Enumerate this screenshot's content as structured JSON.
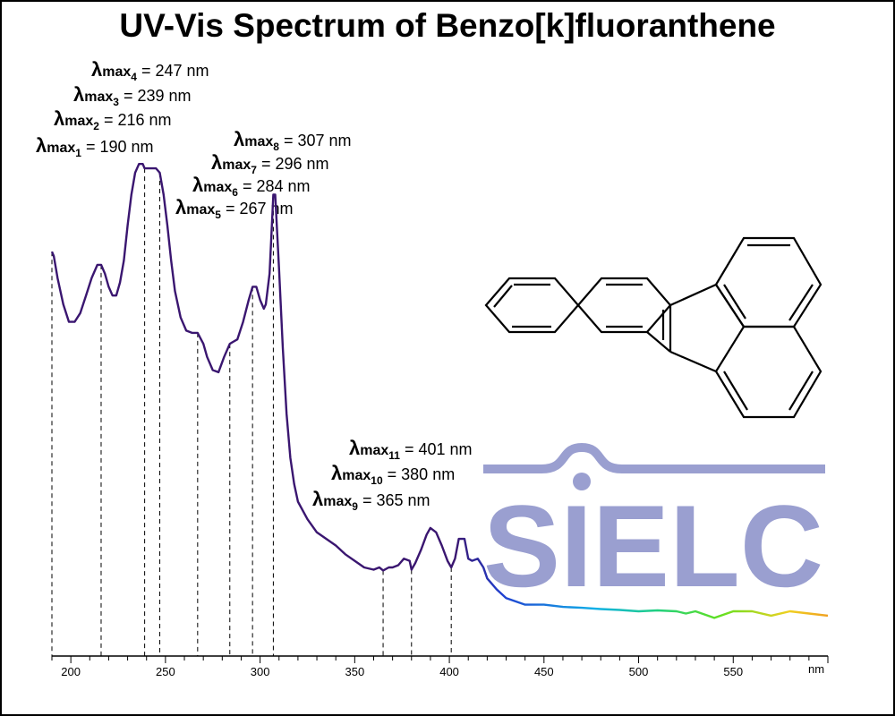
{
  "chart_data": {
    "type": "line",
    "title": "UV-Vis Spectrum of Benzo[k]fluoranthene",
    "x_unit_label": "nm",
    "xlim": [
      190,
      600
    ],
    "x_ticks": [
      200,
      250,
      300,
      350,
      400,
      450,
      500,
      550
    ],
    "grid": false,
    "annotations": [
      {
        "prefix": "λ",
        "sub": "max",
        "index": "1",
        "text": " = 190 nm",
        "x": 190
      },
      {
        "prefix": "λ",
        "sub": "max",
        "index": "2",
        "text": " = 216 nm",
        "x": 216
      },
      {
        "prefix": "λ",
        "sub": "max",
        "index": "3",
        "text": " = 239 nm",
        "x": 239
      },
      {
        "prefix": "λ",
        "sub": "max",
        "index": "4",
        "text": " = 247 nm",
        "x": 247
      },
      {
        "prefix": "λ",
        "sub": "max",
        "index": "5",
        "text": " = 267 nm",
        "x": 267
      },
      {
        "prefix": "λ",
        "sub": "max",
        "index": "6",
        "text": " = 284 nm",
        "x": 284
      },
      {
        "prefix": "λ",
        "sub": "max",
        "index": "7",
        "text": " = 296 nm",
        "x": 296
      },
      {
        "prefix": "λ",
        "sub": "max",
        "index": "8",
        "text": " = 307 nm",
        "x": 307
      },
      {
        "prefix": "λ",
        "sub": "max",
        "index": "9",
        "text": " = 365 nm",
        "x": 365
      },
      {
        "prefix": "λ",
        "sub": "max",
        "index": "10",
        "text": " = 380 nm",
        "x": 380
      },
      {
        "prefix": "λ",
        "sub": "max",
        "index": "11",
        "text": " = 401 nm",
        "x": 401
      }
    ],
    "series": [
      {
        "x": [
          190,
          191,
          193,
          196,
          199,
          202,
          205,
          208,
          211,
          214,
          216,
          218,
          220,
          222,
          224,
          226,
          228,
          230,
          232,
          234,
          236,
          238,
          239,
          240,
          242,
          245,
          247,
          249,
          251,
          253,
          255,
          258,
          261,
          264,
          267,
          270,
          272,
          275,
          278,
          281,
          284,
          286,
          288,
          291,
          294,
          296,
          298,
          300,
          302,
          303,
          305,
          307,
          308,
          310,
          312,
          314,
          316,
          318,
          320,
          325,
          330,
          335,
          340,
          345,
          350,
          355,
          360,
          363,
          365,
          368,
          370,
          373,
          376,
          379,
          380,
          382,
          385,
          388,
          390,
          393,
          396,
          399,
          401,
          403,
          405,
          408,
          410,
          412,
          415,
          418,
          420,
          425,
          430,
          440,
          450,
          460,
          470,
          480,
          490,
          500,
          510,
          520,
          525,
          530,
          540,
          550,
          560,
          570,
          580,
          590,
          600
        ],
        "y": [
          0.82,
          0.81,
          0.76,
          0.7,
          0.66,
          0.66,
          0.68,
          0.72,
          0.76,
          0.79,
          0.79,
          0.77,
          0.74,
          0.72,
          0.72,
          0.75,
          0.8,
          0.88,
          0.95,
          1.0,
          1.02,
          1.02,
          1.01,
          1.01,
          1.01,
          1.01,
          1.0,
          0.95,
          0.88,
          0.8,
          0.73,
          0.67,
          0.64,
          0.635,
          0.635,
          0.61,
          0.58,
          0.55,
          0.545,
          0.58,
          0.61,
          0.615,
          0.62,
          0.66,
          0.71,
          0.74,
          0.74,
          0.71,
          0.69,
          0.7,
          0.77,
          0.95,
          0.95,
          0.78,
          0.6,
          0.45,
          0.35,
          0.29,
          0.25,
          0.21,
          0.18,
          0.165,
          0.15,
          0.13,
          0.115,
          0.1,
          0.095,
          0.1,
          0.093,
          0.1,
          0.1,
          0.105,
          0.12,
          0.115,
          0.095,
          0.11,
          0.14,
          0.175,
          0.19,
          0.18,
          0.15,
          0.115,
          0.1,
          0.12,
          0.165,
          0.165,
          0.12,
          0.115,
          0.12,
          0.1,
          0.075,
          0.05,
          0.03,
          0.015,
          0.015,
          0.01,
          0.008,
          0.005,
          0.003,
          0.0,
          0.002,
          0.0,
          -0.005,
          0.0,
          -0.015,
          0.0,
          0.0,
          -0.01,
          0.0,
          -0.005,
          -0.01
        ]
      }
    ]
  },
  "watermark": {
    "text": "SIELC",
    "color": "#9a9fd0"
  },
  "colors": {
    "line_gradient": [
      "#3a1670",
      "#3a1670",
      "#2040d0",
      "#10b0e8",
      "#20d080",
      "#60e020",
      "#f0d020",
      "#f0a020"
    ]
  },
  "structure_icon": "benzo-k-fluoranthene-structure-icon"
}
